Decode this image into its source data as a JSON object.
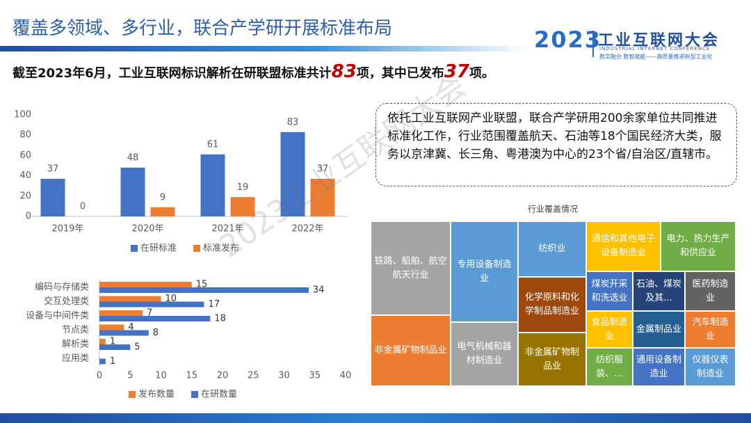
{
  "header": {
    "title": "覆盖多领域、多行业，联合产学研开展标准布局",
    "logo_year": "2023",
    "logo_name": "工业互联网大会",
    "logo_sub": "INDUSTRIAL INTERNET CONFERENCE",
    "logo_slogan": "数实融合  数智赋能——高质量推进新型工业化"
  },
  "summary": {
    "lead": "截至2023年6月，工业互联网标识解析在研联盟标准共计",
    "total": "83",
    "middle": "项，其中已发布",
    "published": "37",
    "tail": "项。"
  },
  "callout": "依托工业互联网产业联盟，联合产学研用200余家单位共同推进标准化工作，行业范围覆盖航天、石油等18个国民经济大类，服务以京津冀、长三角、粤港澳为中心的23个省/自治区/直辖市。",
  "watermark": "2023工业互联网大会",
  "chart_data": [
    {
      "type": "bar",
      "categories": [
        "2019年",
        "2020年",
        "2021年",
        "2022年"
      ],
      "series": [
        {
          "name": "在研标准",
          "color": "#4472c4",
          "values": [
            37,
            48,
            61,
            83
          ]
        },
        {
          "name": "标准发布",
          "color": "#ed7d31",
          "values": [
            0,
            9,
            19,
            37
          ]
        }
      ],
      "ylim": [
        0,
        100
      ],
      "yticks": [
        0,
        20,
        40,
        60,
        80,
        100
      ],
      "grid": false,
      "legend": "bottom"
    },
    {
      "type": "barh",
      "categories": [
        "编码与存储类",
        "交互处理类",
        "设备与中间件类",
        "节点类",
        "解析类",
        "应用类"
      ],
      "series": [
        {
          "name": "发布数量",
          "color": "#ed7d31",
          "values": [
            15,
            10,
            7,
            4,
            1,
            null
          ]
        },
        {
          "name": "在研数量",
          "color": "#4472c4",
          "values": [
            34,
            17,
            18,
            8,
            5,
            1
          ]
        }
      ],
      "xlim": [
        0,
        40
      ],
      "xticks": [
        0,
        5,
        10,
        15,
        20,
        25,
        30,
        35,
        40
      ],
      "grid": false,
      "legend": "bottom"
    },
    {
      "type": "treemap",
      "title": "行业覆盖情况",
      "labels": [
        "铁路、船舶、航空航天行业",
        "非金属矿物制品业",
        "专用设备制造业",
        "电气机械和器材制造业",
        "纺织业",
        "化学原料和化学制品制造业",
        "非金属矿物制品业",
        "通信和其他电子设备制造业",
        "电力、热力生产和供应业",
        "煤炭开采和洗选业",
        "石油、煤炭及其...",
        "医药制造业",
        "食品制造业",
        "金属制品业",
        "汽车制造业",
        "纺织服装、...",
        "通用设备制造业",
        "仪器仪表制造业"
      ],
      "colors": [
        "#a5a5a5",
        "#ed7d31",
        "#5b9bd5",
        "#a5a5a5",
        "#5b9bd5",
        "#9e480e",
        "#997300",
        "#ffc000",
        "#70ad47",
        "#4472c4",
        "#264478",
        "#636363",
        "#ffc000",
        "#255e91",
        "#ed7d31",
        "#70ad47",
        "#4472c4",
        "#5b9bd5"
      ]
    }
  ]
}
